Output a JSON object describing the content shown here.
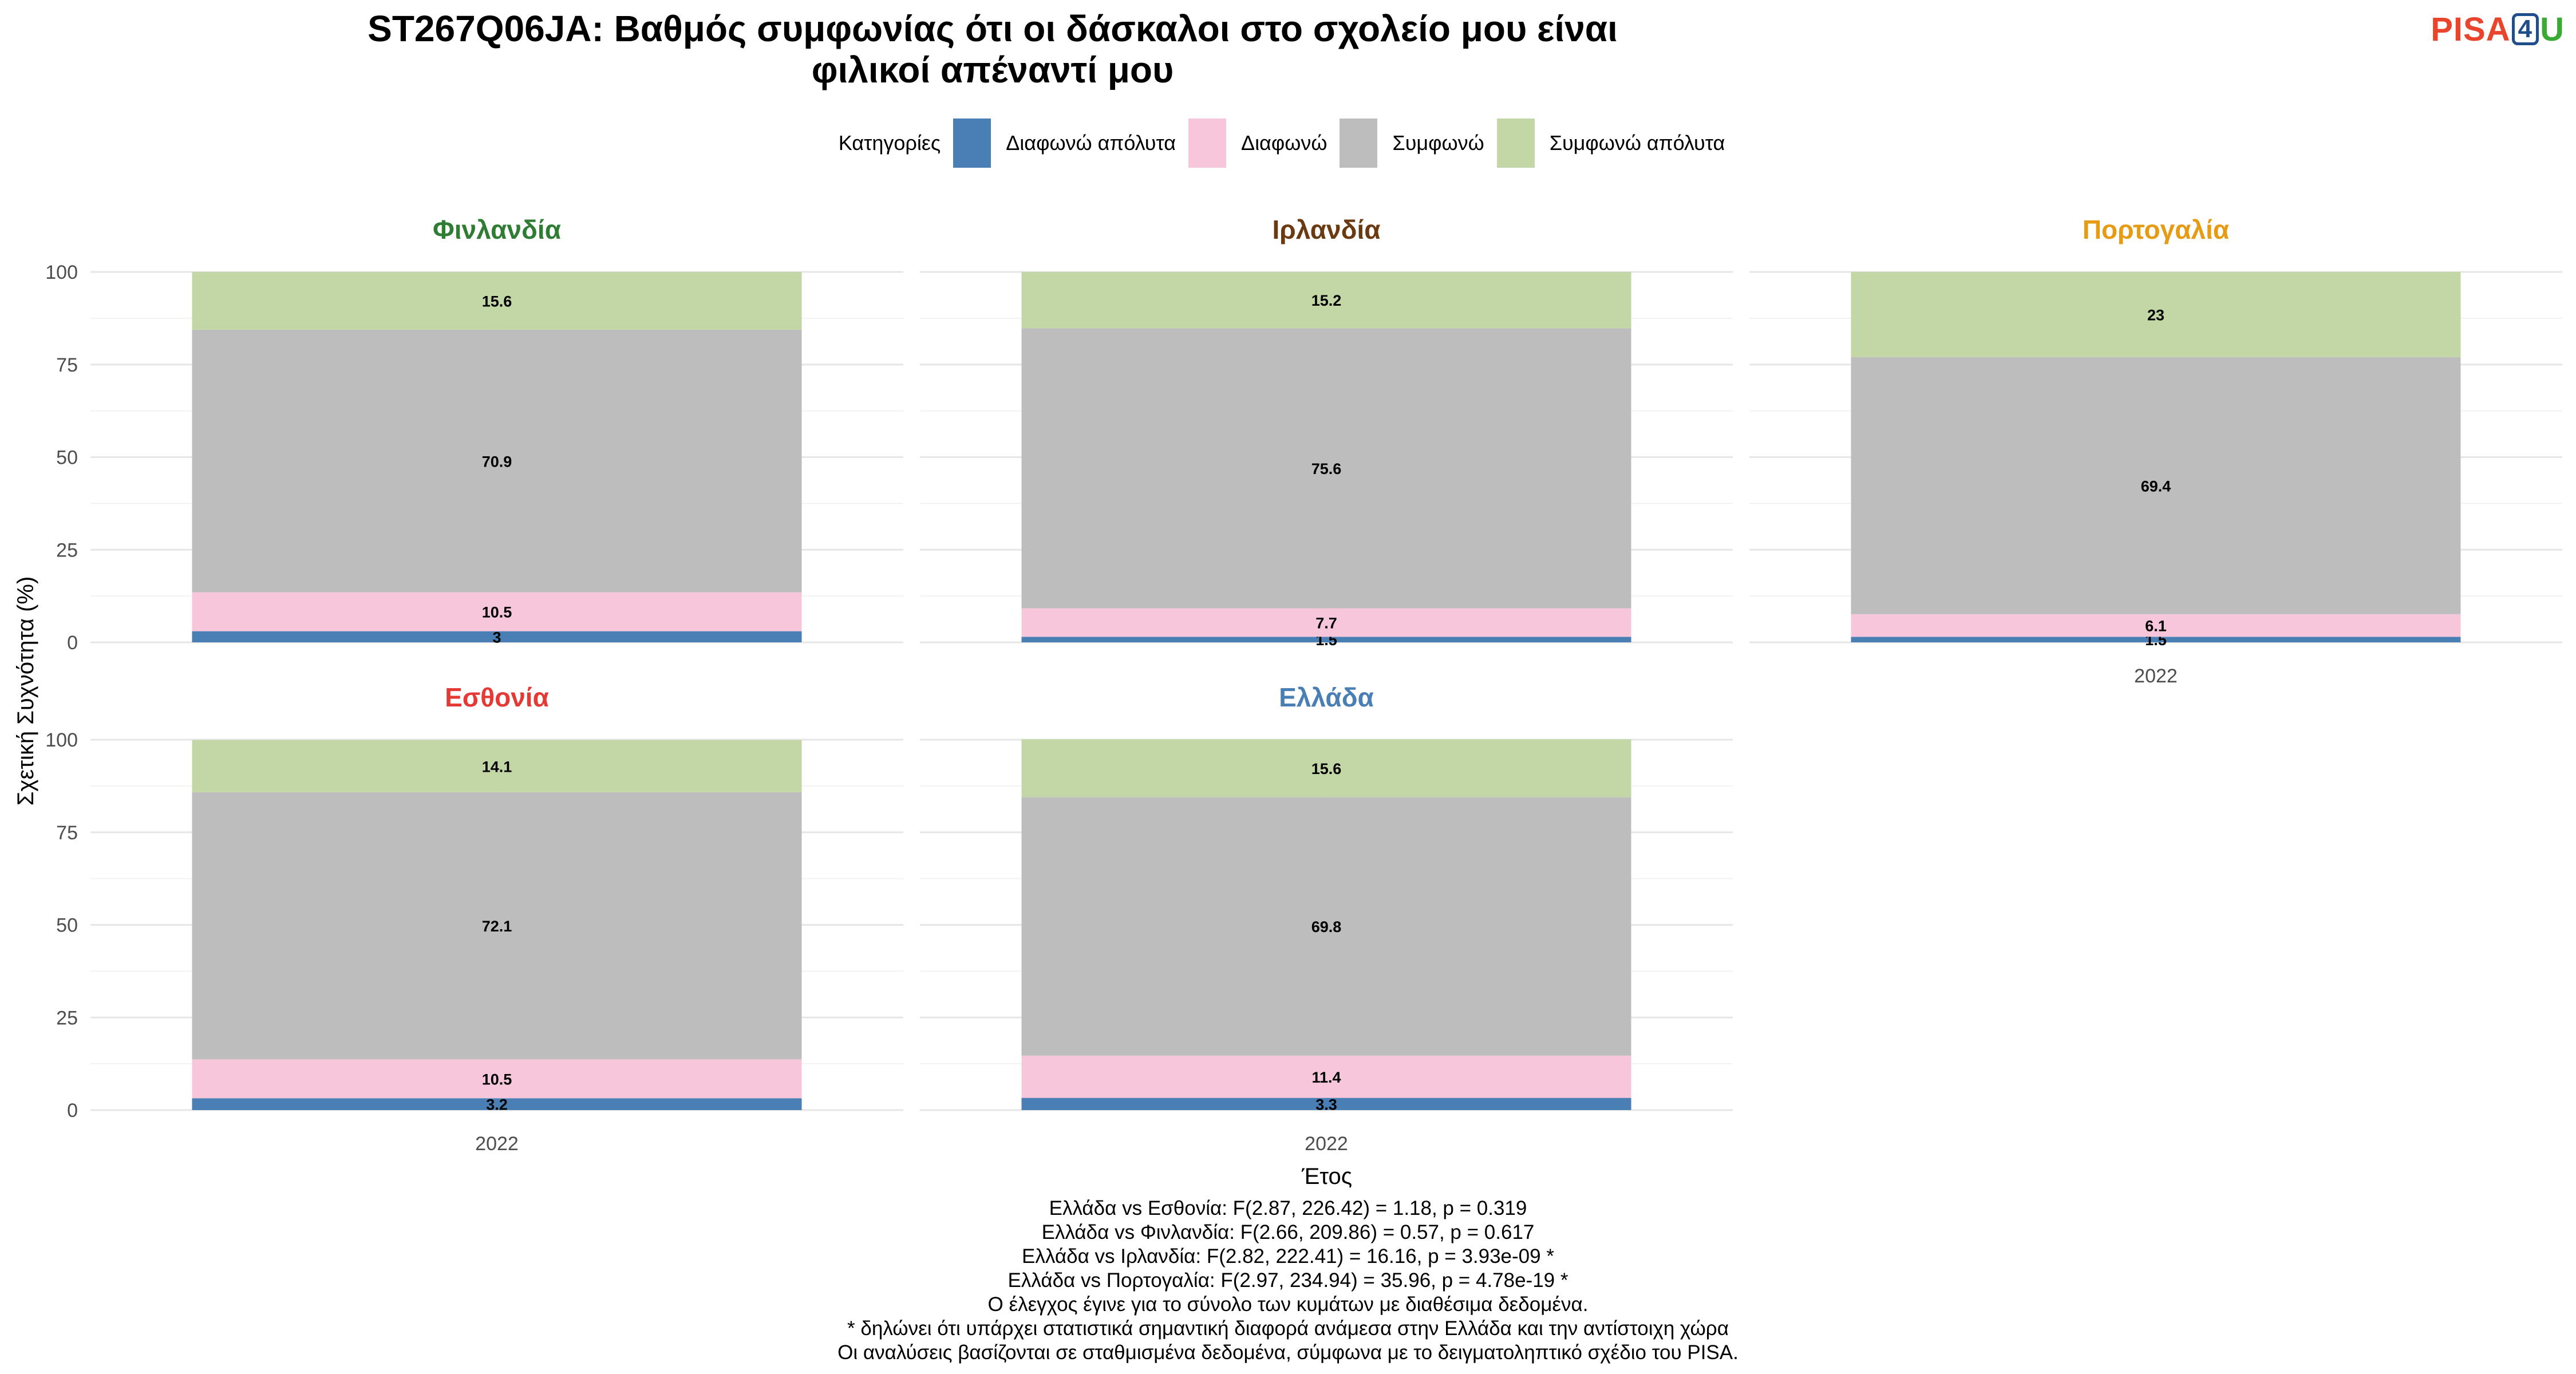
{
  "title_lines": [
    "ST267Q06JA: Βαθμός συμφωνίας ότι οι δάσκαλοι στο σχολείο μου είναι",
    "φιλικοί απέναντί μου"
  ],
  "logo": {
    "part1": "PISA",
    "part2": "4",
    "part3": "U"
  },
  "legend": {
    "title": "Κατηγορίες",
    "items": [
      {
        "label": "Διαφωνώ απόλυτα",
        "color": "#4a7fb5"
      },
      {
        "label": "Διαφωνώ",
        "color": "#f8c6db"
      },
      {
        "label": "Συμφωνώ",
        "color": "#bdbdbd"
      },
      {
        "label": "Συμφωνώ απόλυτα",
        "color": "#c3d7a6"
      }
    ]
  },
  "chart_data": {
    "type": "bar",
    "stacked": true,
    "ylabel": "Σχετική Συχνότητα (%)",
    "xlabel": "Έτος",
    "ylim": [
      0,
      100
    ],
    "yticks": [
      0,
      25,
      50,
      75,
      100
    ],
    "categories": [
      "2022"
    ],
    "series_names": [
      "Διαφωνώ απόλυτα",
      "Διαφωνώ",
      "Συμφωνώ",
      "Συμφωνώ απόλυτα"
    ],
    "panels": [
      {
        "name": "Φινλανδία",
        "title_color": "#2e7d32",
        "values": [
          3,
          10.5,
          70.9,
          15.6
        ],
        "labels": [
          "3",
          "10.5",
          "70.9",
          "15.6"
        ],
        "show_x_axis": false
      },
      {
        "name": "Ιρλανδία",
        "title_color": "#6b3a10",
        "values": [
          1.5,
          7.7,
          75.6,
          15.2
        ],
        "labels": [
          "1.5",
          "7.7",
          "75.6",
          "15.2"
        ],
        "show_x_axis": false
      },
      {
        "name": "Πορτογαλία",
        "title_color": "#e69b12",
        "values": [
          1.5,
          6.1,
          69.4,
          23
        ],
        "labels": [
          "1.5",
          "6.1",
          "69.4",
          "23"
        ],
        "show_x_axis": true
      },
      {
        "name": "Εσθονία",
        "title_color": "#e53935",
        "values": [
          3.2,
          10.5,
          72.1,
          14.1
        ],
        "labels": [
          "3.2",
          "10.5",
          "72.1",
          "14.1"
        ],
        "show_x_axis": true
      },
      {
        "name": "Ελλάδα",
        "title_color": "#4a7fb5",
        "values": [
          3.3,
          11.4,
          69.8,
          15.6
        ],
        "labels": [
          "3.3",
          "11.4",
          "69.8",
          "15.6"
        ],
        "show_x_axis": true
      }
    ]
  },
  "notes": [
    "Ελλάδα vs Εσθονία: F(2.87, 226.42) = 1.18, p = 0.319",
    "Ελλάδα vs Φινλανδία: F(2.66, 209.86) = 0.57, p = 0.617",
    "Ελλάδα vs Ιρλανδία: F(2.82, 222.41) = 16.16, p = 3.93e-09 *",
    "Ελλάδα vs Πορτογαλία: F(2.97, 234.94) = 35.96, p = 4.78e-19 *",
    "Ο έλεγχος έγινε για το σύνολο των κυμάτων με διαθέσιμα δεδομένα.",
    "* δηλώνει ότι υπάρχει στατιστικά σημαντική διαφορά ανάμεσα στην Ελλάδα και την αντίστοιχη χώρα",
    "Οι αναλύσεις βασίζονται σε σταθμισμένα δεδομένα, σύμφωνα με το δειγματοληπτικό σχέδιο του PISA."
  ]
}
